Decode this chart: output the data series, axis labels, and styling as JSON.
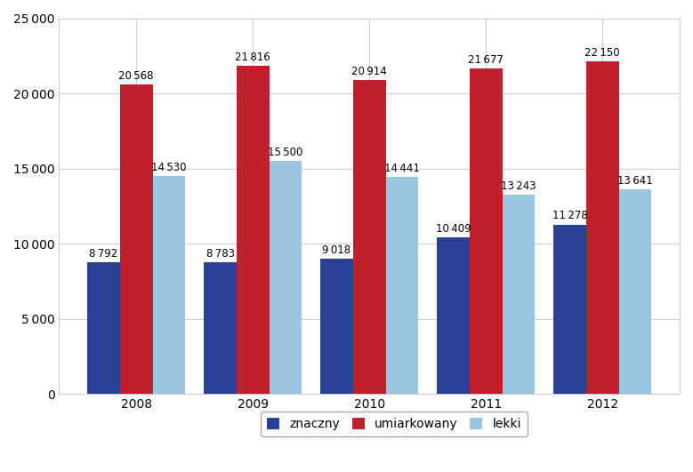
{
  "years": [
    "2008",
    "2009",
    "2010",
    "2011",
    "2012"
  ],
  "znaczny": [
    8792,
    8783,
    9018,
    10409,
    11278
  ],
  "umiarkowany": [
    20568,
    21816,
    20914,
    21677,
    22150
  ],
  "lekki": [
    14530,
    15500,
    14441,
    13243,
    13641
  ],
  "color_znaczny": "#2B4099",
  "color_umiarkowany": "#C0202A",
  "color_lekki": "#99C4E2",
  "ylim": [
    0,
    25000
  ],
  "yticks": [
    0,
    5000,
    10000,
    15000,
    20000,
    25000
  ],
  "legend_labels": [
    "znaczny",
    "umiarkowany",
    "lekki"
  ],
  "bar_width": 0.28,
  "label_fontsize": 8.5,
  "tick_fontsize": 10,
  "legend_fontsize": 10,
  "background_color": "#FFFFFF",
  "grid_color": "#CCCCCC",
  "plot_bg_color": "#FFFFFF"
}
